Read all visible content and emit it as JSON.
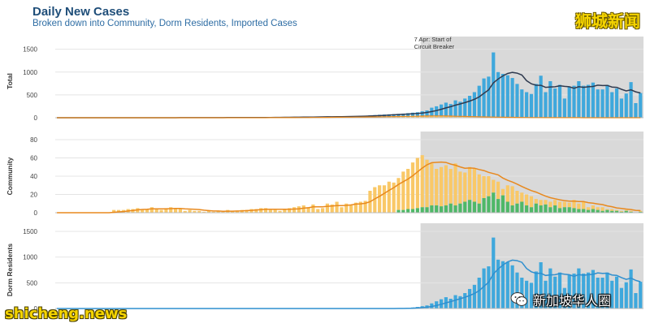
{
  "header": {
    "title": "Daily New Cases",
    "subtitle": "Broken down into Community, Dorm Residents, Imported Cases"
  },
  "watermarks": {
    "top_right": "狮城新闻",
    "bottom_left": "shicheng.news",
    "wechat_label": "新加坡华人圈",
    "wechat_icon": "wechat-icon"
  },
  "colors": {
    "blue_bar": "#3fa8dc",
    "orange_bar": "#f9c867",
    "green_bar": "#4fb868",
    "orange_line": "#e8891e",
    "dark_line": "#2f3a4f",
    "blue_line": "#2f8fcf",
    "shade": "#d9d9d9"
  },
  "chart_data": [
    {
      "type": "bar",
      "ylabel": "Total",
      "ylim": [
        0,
        1600
      ],
      "yticks": [
        0,
        500,
        1000,
        1500
      ],
      "annotation": [
        "7 Apr: Start of",
        "Circuit Breaker"
      ],
      "shaded_from_day": 77,
      "days": 124,
      "series": [
        {
          "values": [
            0,
            0,
            0,
            0,
            0,
            0,
            0,
            0,
            0,
            0,
            0,
            0,
            0,
            0,
            0,
            0,
            0,
            0,
            0,
            0,
            0,
            0,
            0,
            0,
            0,
            0,
            0,
            0,
            0,
            0,
            0,
            0,
            0,
            0,
            0,
            0,
            0,
            0,
            0,
            0,
            0,
            0,
            0,
            0,
            0,
            0,
            0,
            0,
            0,
            0,
            0,
            0,
            0,
            0,
            0,
            0,
            0,
            0,
            0,
            0,
            0,
            0,
            0,
            0,
            0,
            0,
            0,
            0,
            0,
            0,
            0,
            0,
            0,
            0,
            0,
            0,
            0,
            0,
            0,
            0,
            0,
            0,
            0,
            0,
            0,
            0,
            0,
            0,
            0,
            0,
            0,
            0,
            0,
            0,
            0,
            0,
            0,
            0,
            0,
            0,
            0,
            0,
            0,
            0,
            0,
            0,
            0,
            0,
            0,
            0,
            0,
            0,
            0,
            0,
            0,
            0,
            0,
            0,
            0,
            0,
            0,
            0,
            0,
            0
          ]
        },
        {
          "values": [
            0,
            0,
            0,
            0,
            0,
            0,
            0,
            0,
            0,
            0,
            0,
            0,
            0,
            0,
            0,
            0,
            0,
            0,
            0,
            0,
            0,
            0,
            0,
            0,
            0,
            0,
            0,
            0,
            0,
            0,
            0,
            0,
            0,
            0,
            0,
            0,
            0,
            0,
            0,
            0,
            0,
            0,
            0,
            0,
            0,
            0,
            0,
            0,
            0,
            0,
            0,
            0,
            0,
            0,
            0,
            0,
            0,
            0,
            0,
            0,
            0,
            0,
            0,
            0,
            0,
            0,
            0,
            0,
            0,
            0,
            0,
            0,
            0,
            0,
            0,
            0,
            0,
            0,
            0,
            0,
            0,
            0,
            0,
            0,
            0,
            0,
            0,
            0,
            0,
            0,
            0,
            0,
            0,
            0,
            0,
            0,
            0,
            0,
            0,
            0,
            0,
            0,
            0,
            0,
            0,
            0,
            0,
            0,
            0,
            0,
            0,
            0,
            0,
            0,
            0,
            0,
            0,
            0,
            0,
            0,
            0,
            0,
            0,
            0
          ]
        }
      ]
    },
    {
      "type": "bar",
      "ylabel": "Community",
      "ylim": [
        0,
        80
      ],
      "yticks": [
        0,
        20,
        40,
        60,
        80
      ],
      "shaded_from_day": 77,
      "days": 124
    },
    {
      "type": "bar",
      "ylabel": "Dorm Residents",
      "ylim": [
        0,
        1500
      ],
      "yticks": [
        0,
        500,
        1000,
        1500
      ],
      "shaded_from_day": 77,
      "days": 124
    }
  ],
  "series_values": {
    "total": [
      0,
      0,
      0,
      0,
      0,
      0,
      0,
      0,
      0,
      0,
      0,
      0,
      0,
      0,
      0,
      0,
      0,
      0,
      0,
      0,
      1,
      1,
      1,
      1,
      1,
      1,
      2,
      2,
      2,
      2,
      2,
      2,
      3,
      3,
      3,
      3,
      3,
      4,
      4,
      4,
      5,
      5,
      6,
      6,
      7,
      8,
      9,
      10,
      11,
      12,
      13,
      14,
      16,
      18,
      20,
      20,
      22,
      23,
      24,
      26,
      28,
      30,
      32,
      36,
      40,
      45,
      52,
      58,
      65,
      70,
      75,
      80,
      85,
      90,
      100,
      110,
      120,
      140,
      160,
      220,
      250,
      290,
      330,
      300,
      380,
      350,
      420,
      480,
      560,
      700,
      860,
      900,
      1430,
      1000,
      960,
      930,
      870,
      740,
      620,
      560,
      520,
      740,
      920,
      560,
      800,
      640,
      720,
      420,
      680,
      700,
      800,
      700,
      720,
      770,
      620,
      620,
      720,
      560,
      640,
      420,
      530,
      780,
      320,
      540
    ],
    "imported": [
      0,
      0,
      0,
      0,
      0,
      0,
      0,
      0,
      0,
      0,
      0,
      0,
      0,
      0,
      0,
      0,
      0,
      0,
      0,
      0,
      0,
      0,
      0,
      0,
      0,
      0,
      0,
      0,
      0,
      0,
      0,
      0,
      0,
      0,
      0,
      0,
      0,
      0,
      0,
      0,
      1,
      1,
      1,
      1,
      1,
      2,
      2,
      2,
      3,
      3,
      4,
      5,
      6,
      7,
      8,
      9,
      10,
      11,
      12,
      13,
      14,
      15,
      16,
      17,
      18,
      19,
      20,
      22,
      24,
      26,
      28,
      30,
      32,
      34,
      36,
      38,
      40,
      42,
      40,
      38,
      36,
      34,
      30,
      28,
      24,
      22,
      20,
      18,
      16,
      14,
      12,
      10,
      9,
      8,
      7,
      6,
      5,
      4,
      3,
      2,
      2,
      2,
      1,
      1,
      1,
      1,
      1,
      1,
      1,
      1,
      1,
      0,
      0,
      0,
      0,
      0,
      0,
      0,
      0,
      0,
      0,
      0,
      0,
      0
    ],
    "community": [
      0,
      0,
      0,
      0,
      0,
      0,
      0,
      0,
      0,
      0,
      0,
      0,
      3,
      3,
      3,
      4,
      4,
      5,
      3,
      4,
      6,
      4,
      3,
      5,
      6,
      5,
      4,
      2,
      3,
      2,
      2,
      1,
      2,
      1,
      2,
      1,
      3,
      2,
      2,
      3,
      3,
      4,
      4,
      5,
      5,
      3,
      3,
      2,
      4,
      5,
      6,
      7,
      8,
      6,
      9,
      4,
      5,
      10,
      9,
      12,
      6,
      10,
      8,
      11,
      12,
      13,
      24,
      28,
      30,
      30,
      34,
      33,
      38,
      45,
      48,
      55,
      60,
      63,
      58,
      54,
      48,
      50,
      52,
      48,
      54,
      45,
      44,
      50,
      48,
      42,
      40,
      40,
      36,
      34,
      26,
      30,
      29,
      24,
      22,
      20,
      18,
      15,
      14,
      14,
      12,
      14,
      12,
      12,
      11,
      14,
      10,
      12,
      6,
      8,
      6,
      6,
      4,
      4,
      3,
      2,
      3,
      2,
      0,
      2
    ],
    "community_green": [
      0,
      0,
      0,
      0,
      0,
      0,
      0,
      0,
      0,
      0,
      0,
      0,
      0,
      0,
      0,
      0,
      0,
      0,
      0,
      0,
      0,
      0,
      0,
      0,
      0,
      0,
      0,
      0,
      0,
      0,
      0,
      0,
      0,
      0,
      0,
      0,
      0,
      0,
      0,
      0,
      0,
      0,
      0,
      0,
      0,
      0,
      0,
      0,
      0,
      0,
      0,
      0,
      0,
      0,
      0,
      0,
      0,
      0,
      0,
      0,
      0,
      0,
      0,
      0,
      0,
      0,
      0,
      0,
      0,
      0,
      0,
      0,
      3,
      3,
      4,
      4,
      5,
      6,
      6,
      8,
      8,
      7,
      8,
      10,
      8,
      10,
      12,
      14,
      12,
      10,
      16,
      18,
      22,
      15,
      19,
      12,
      8,
      10,
      12,
      8,
      6,
      10,
      8,
      9,
      6,
      8,
      5,
      6,
      6,
      5,
      4,
      4,
      3,
      4,
      3,
      2,
      3,
      2,
      2,
      1,
      2,
      1,
      0,
      1
    ],
    "dorm": [
      0,
      0,
      0,
      0,
      0,
      0,
      0,
      0,
      0,
      0,
      0,
      0,
      0,
      0,
      0,
      0,
      0,
      0,
      0,
      0,
      0,
      0,
      0,
      0,
      0,
      0,
      0,
      0,
      0,
      0,
      0,
      0,
      0,
      0,
      0,
      0,
      0,
      0,
      0,
      0,
      0,
      0,
      0,
      0,
      0,
      0,
      0,
      0,
      0,
      0,
      0,
      0,
      0,
      0,
      0,
      0,
      0,
      0,
      0,
      0,
      0,
      0,
      0,
      0,
      0,
      0,
      0,
      0,
      0,
      0,
      0,
      2,
      4,
      8,
      14,
      20,
      30,
      45,
      60,
      100,
      140,
      180,
      220,
      190,
      260,
      240,
      300,
      380,
      460,
      600,
      780,
      820,
      1380,
      950,
      920,
      900,
      840,
      700,
      600,
      540,
      500,
      720,
      900,
      540,
      780,
      620,
      700,
      400,
      660,
      680,
      780,
      680,
      700,
      750,
      600,
      600,
      700,
      540,
      620,
      400,
      510,
      760,
      300,
      520
    ]
  }
}
